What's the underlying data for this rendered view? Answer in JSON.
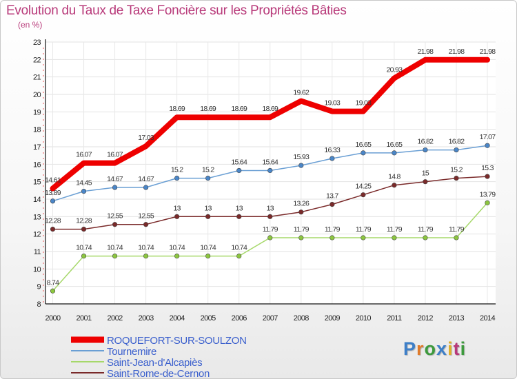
{
  "title": "Evolution du Taux de Taxe Foncière sur les Propriétés Bâties",
  "unit": "(en %)",
  "logo": {
    "text": "Proxiti",
    "colors": [
      "#3d7fc8",
      "#e07b2a",
      "#3d9a3d",
      "#3d7fc8",
      "#e0b02a",
      "#b83a7a",
      "#3d9a3d"
    ]
  },
  "chart_data": {
    "type": "line",
    "title": "Evolution du Taux de Taxe Foncière sur les Propriétés Bâties",
    "ylabel": "(en %)",
    "xlabel": "",
    "x": [
      "2000",
      "2001",
      "2002",
      "2003",
      "2004",
      "2005",
      "2006",
      "2007",
      "2008",
      "2009",
      "2010",
      "2011",
      "2012",
      "2013",
      "2014"
    ],
    "ylim": [
      8,
      23
    ],
    "yticks": [
      8,
      9,
      10,
      11,
      12,
      13,
      14,
      15,
      16,
      17,
      18,
      19,
      20,
      21,
      22,
      23
    ],
    "grid": true,
    "legend_position": "bottom-left",
    "series": [
      {
        "name": "ROQUEFORT-SUR-SOULZON",
        "color": "#ee0000",
        "legend_color": "#3a5fcd",
        "width": 8,
        "values": [
          14.61,
          16.07,
          16.07,
          17.03,
          18.69,
          18.69,
          18.69,
          18.69,
          19.62,
          19.03,
          19.03,
          20.93,
          21.98,
          21.98,
          21.98
        ],
        "labels": [
          "14.61",
          "16.07",
          "16.07",
          "17.03",
          "18.69",
          "18.69",
          "18.69",
          "18.69",
          "19.62",
          "19.03",
          "19.03",
          "20.93",
          "21.98",
          "21.98",
          "21.98"
        ]
      },
      {
        "name": "Tournemire",
        "color": "#6a9fd4",
        "marker": "#4a86c8",
        "legend_color": "#3a5fcd",
        "width": 1.5,
        "values": [
          13.89,
          14.45,
          14.67,
          14.67,
          15.2,
          15.2,
          15.64,
          15.64,
          15.93,
          16.33,
          16.65,
          16.65,
          16.82,
          16.82,
          17.07
        ],
        "labels": [
          "13.89",
          "14.45",
          "14.67",
          "14.67",
          "15.2",
          "15.2",
          "15.64",
          "15.64",
          "15.93",
          "16.33",
          "16.65",
          "16.65",
          "16.82",
          "16.82",
          "17.07"
        ]
      },
      {
        "name": "Saint-Jean-d'Alcapiès",
        "color": "#a6d86a",
        "marker": "#8cc63f",
        "legend_color": "#3a5fcd",
        "width": 1.5,
        "values": [
          8.74,
          10.74,
          10.74,
          10.74,
          10.74,
          10.74,
          10.74,
          11.79,
          11.79,
          11.79,
          11.79,
          11.79,
          11.79,
          11.79,
          13.79
        ],
        "labels": [
          "8.74",
          "10.74",
          "10.74",
          "10.74",
          "10.74",
          "10.74",
          "10.74",
          "11.79",
          "11.79",
          "11.79",
          "11.79",
          "11.79",
          "11.79",
          "11.79",
          "13.79"
        ]
      },
      {
        "name": "Saint-Rome-de-Cernon",
        "color": "#7a2a2a",
        "marker": "#7a2a2a",
        "legend_color": "#3a5fcd",
        "width": 1.5,
        "values": [
          12.28,
          12.28,
          12.55,
          12.55,
          13,
          13,
          13,
          13,
          13.26,
          13.7,
          14.25,
          14.8,
          15,
          15.2,
          15.3
        ],
        "labels": [
          "12.28",
          "12.28",
          "12.55",
          "12.55",
          "13",
          "13",
          "13",
          "13",
          "13.26",
          "13.7",
          "14.25",
          "14.8",
          "15",
          "15.2",
          "15.3"
        ]
      }
    ]
  }
}
